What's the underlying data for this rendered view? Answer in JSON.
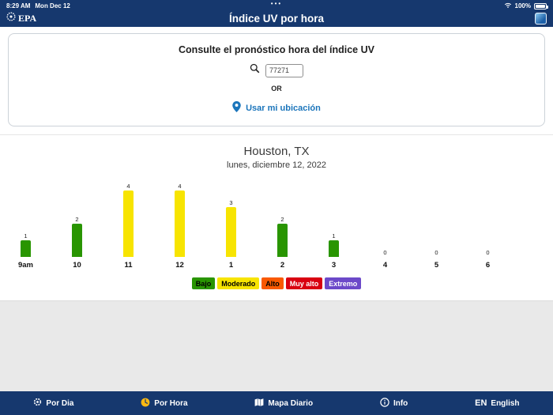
{
  "status_bar": {
    "time": "8:29 AM",
    "date": "Mon Dec 12",
    "dots": "•••",
    "battery_percent": "100%"
  },
  "header": {
    "logo_text": "EPA",
    "title": "Índice UV por hora"
  },
  "search_card": {
    "heading": "Consulte el pronóstico hora del índice UV",
    "zip_input": "77271",
    "or_label": "OR",
    "use_location_label": "Usar mi ubicación"
  },
  "chart_data": {
    "type": "bar",
    "title": "Houston, TX",
    "subtitle": "lunes, diciembre 12, 2022",
    "categories": [
      "9am",
      "10",
      "11",
      "12",
      "1",
      "2",
      "3",
      "4",
      "5",
      "6"
    ],
    "values": [
      1,
      2,
      4,
      4,
      3,
      2,
      1,
      0,
      0,
      0
    ],
    "ylim": [
      0,
      4
    ],
    "palette": {
      "low": "#299501",
      "moderate": "#f7e401",
      "high": "#f95901",
      "very_high": "#d90011",
      "extreme": "#6c49c9"
    },
    "legend": [
      {
        "label": "Bajo",
        "color": "#299501",
        "text_color": "#000000"
      },
      {
        "label": "Moderado",
        "color": "#f7e401",
        "text_color": "#000000"
      },
      {
        "label": "Alto",
        "color": "#f95901",
        "text_color": "#000000"
      },
      {
        "label": "Muy alto",
        "color": "#d90011",
        "text_color": "#ffffff"
      },
      {
        "label": "Extremo",
        "color": "#6c49c9",
        "text_color": "#ffffff"
      }
    ]
  },
  "bottom_nav": {
    "items": [
      {
        "label": "Por Dia",
        "icon": "sun-gear-icon",
        "active": false
      },
      {
        "label": "Por Hora",
        "icon": "clock-icon",
        "active": true
      },
      {
        "label": "Mapa Diario",
        "icon": "map-icon",
        "active": false
      },
      {
        "label": "Info",
        "icon": "info-icon",
        "active": false
      }
    ],
    "language": {
      "code": "EN",
      "label": "English"
    }
  },
  "colors": {
    "navy": "#16386e",
    "accent_blue": "#1b75bb",
    "active_yellow": "#fdb913"
  }
}
